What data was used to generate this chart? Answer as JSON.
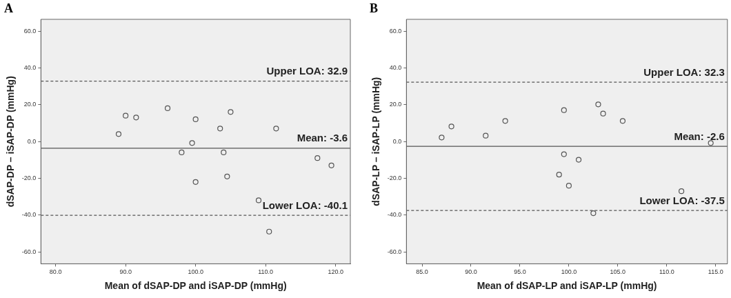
{
  "chart_data": [
    {
      "type": "scatter",
      "title": "A",
      "xlabel": "Mean of dSAP-DP and iSAP-DP (mmHg)",
      "ylabel": "dSAP-DP – iSAP-DP (mmHg)",
      "x": [
        89.0,
        90.0,
        91.5,
        96.0,
        100.0,
        98.0,
        99.5,
        100.0,
        103.5,
        105.0,
        104.0,
        104.5,
        109.0,
        110.5,
        111.5,
        117.4,
        119.4
      ],
      "values": [
        4.1,
        14.1,
        13.1,
        18.1,
        12.1,
        -5.9,
        -0.8,
        -22.0,
        7.1,
        16.1,
        -5.9,
        -19.0,
        -32.0,
        -49.0,
        7.1,
        -9.0,
        -13.0
      ],
      "color": "#555555",
      "marker": "circle",
      "grid": false,
      "xlim": [
        77.9,
        122.1
      ],
      "xticks": [
        {
          "value": 80,
          "label": "80.0"
        },
        {
          "value": 90,
          "label": "90.0"
        },
        {
          "value": 100,
          "label": "100.0"
        },
        {
          "value": 110,
          "label": "110.0"
        },
        {
          "value": 120,
          "label": "120.0"
        }
      ],
      "ylim": [
        -66.5,
        66.5
      ],
      "yticks": [
        {
          "value": -60,
          "label": "-60.0"
        },
        {
          "value": -40,
          "label": "-40.0"
        },
        {
          "value": -20,
          "label": "-20.0"
        },
        {
          "value": 0,
          "label": "0.0"
        },
        {
          "value": 20,
          "label": "20.0"
        },
        {
          "value": 40,
          "label": "40.0"
        },
        {
          "value": 60,
          "label": "60.0"
        }
      ],
      "ref_lines": [
        {
          "axis": "y",
          "value": 32.9,
          "label": "Upper LOA: 32.9",
          "line_style": "dashed",
          "color": "#555555"
        },
        {
          "axis": "y",
          "value": -3.6,
          "label": "Mean: -3.6",
          "line_style": "solid",
          "color": "#555555"
        },
        {
          "axis": "y",
          "value": -40.1,
          "label": "Lower LOA: -40.1",
          "line_style": "dashed",
          "color": "#555555"
        }
      ]
    },
    {
      "type": "scatter",
      "title": "B",
      "xlabel": "Mean of dSAP-LP and iSAP-LP (mmHg)",
      "ylabel": "dSAP-LP – iSAP-LP (mmHg)",
      "x": [
        87.0,
        88.0,
        91.5,
        93.5,
        99.5,
        103.0,
        103.5,
        105.5,
        114.5,
        99.5,
        101.0,
        99.0,
        100.0,
        111.5,
        102.5
      ],
      "values": [
        2.2,
        8.2,
        3.2,
        11.2,
        17.1,
        20.2,
        15.2,
        11.2,
        -0.8,
        -6.9,
        -9.9,
        -18.0,
        -24.0,
        -27.0,
        -39.0
      ],
      "color": "#555555",
      "marker": "circle",
      "grid": false,
      "xlim": [
        83.4,
        116.2
      ],
      "xticks": [
        {
          "value": 85,
          "label": "85.0"
        },
        {
          "value": 90,
          "label": "90.0"
        },
        {
          "value": 95,
          "label": "95.0"
        },
        {
          "value": 100,
          "label": "100.0"
        },
        {
          "value": 105,
          "label": "105.0"
        },
        {
          "value": 110,
          "label": "110.0"
        },
        {
          "value": 115,
          "label": "115.0"
        }
      ],
      "ylim": [
        -66.5,
        66.5
      ],
      "yticks": [
        {
          "value": -60,
          "label": "-60.0"
        },
        {
          "value": -40,
          "label": "-40.0"
        },
        {
          "value": -20,
          "label": "-20.0"
        },
        {
          "value": 0,
          "label": "0.0"
        },
        {
          "value": 20,
          "label": "20.0"
        },
        {
          "value": 40,
          "label": "40.0"
        },
        {
          "value": 60,
          "label": "60.0"
        }
      ],
      "ref_lines": [
        {
          "axis": "y",
          "value": 32.3,
          "label": "Upper LOA: 32.3",
          "line_style": "dashed",
          "color": "#555555"
        },
        {
          "axis": "y",
          "value": -2.6,
          "label": "Mean: -2.6",
          "line_style": "solid",
          "color": "#555555"
        },
        {
          "axis": "y",
          "value": -37.5,
          "label": "Lower LOA: -37.5",
          "line_style": "dashed",
          "color": "#555555"
        }
      ]
    }
  ]
}
